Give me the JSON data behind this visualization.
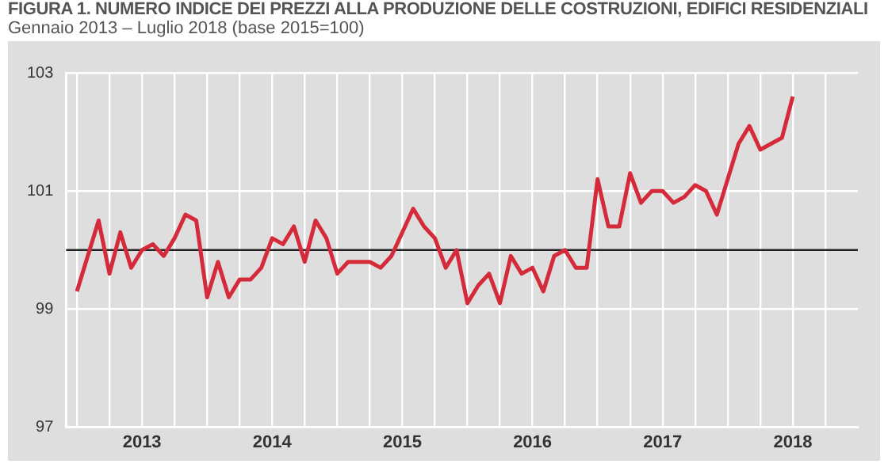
{
  "chart_data": {
    "type": "line",
    "title": "FIGURA 1. NUMERO INDICE DEI PREZZI ALLA PRODUZIONE DELLE COSTRUZIONI, EDIFICI RESIDENZIALI",
    "subtitle": "Gennaio 2013 – Luglio 2018 (base 2015=100)",
    "x": [
      "2013-01",
      "2013-02",
      "2013-03",
      "2013-04",
      "2013-05",
      "2013-06",
      "2013-07",
      "2013-08",
      "2013-09",
      "2013-10",
      "2013-11",
      "2013-12",
      "2014-01",
      "2014-02",
      "2014-03",
      "2014-04",
      "2014-05",
      "2014-06",
      "2014-07",
      "2014-08",
      "2014-09",
      "2014-10",
      "2014-11",
      "2014-12",
      "2015-01",
      "2015-02",
      "2015-03",
      "2015-04",
      "2015-05",
      "2015-06",
      "2015-07",
      "2015-08",
      "2015-09",
      "2015-10",
      "2015-11",
      "2015-12",
      "2016-01",
      "2016-02",
      "2016-03",
      "2016-04",
      "2016-05",
      "2016-06",
      "2016-07",
      "2016-08",
      "2016-09",
      "2016-10",
      "2016-11",
      "2016-12",
      "2017-01",
      "2017-02",
      "2017-03",
      "2017-04",
      "2017-05",
      "2017-06",
      "2017-07",
      "2017-08",
      "2017-09",
      "2017-10",
      "2017-11",
      "2017-12",
      "2018-01",
      "2018-02",
      "2018-03",
      "2018-04",
      "2018-05",
      "2018-06",
      "2018-07"
    ],
    "series": [
      {
        "color": "#d42a3a",
        "values": [
          99.3,
          99.9,
          100.5,
          99.6,
          100.3,
          99.7,
          100.0,
          100.1,
          99.9,
          100.2,
          100.6,
          100.5,
          99.2,
          99.8,
          99.2,
          99.5,
          99.5,
          99.7,
          100.2,
          100.1,
          100.4,
          99.8,
          100.5,
          100.2,
          99.6,
          99.8,
          99.8,
          99.8,
          99.7,
          99.9,
          100.3,
          100.7,
          100.4,
          100.2,
          99.7,
          100.0,
          99.1,
          99.4,
          99.6,
          99.1,
          99.9,
          99.6,
          99.7,
          99.3,
          99.9,
          100.0,
          99.7,
          99.7,
          101.2,
          100.4,
          100.4,
          101.3,
          100.8,
          101.0,
          101.0,
          100.8,
          100.9,
          101.1,
          101.0,
          100.6,
          101.2,
          101.8,
          102.1,
          101.7,
          101.8,
          101.9,
          102.6
        ]
      }
    ],
    "xlim": [
      "2012-12",
      "2019-01"
    ],
    "xticks": [
      {
        "value": "2013-01",
        "label": null
      },
      {
        "value": "2013-04",
        "label": null
      },
      {
        "value": "2013-07",
        "label": "2013"
      },
      {
        "value": "2013-10",
        "label": null
      },
      {
        "value": "2014-01",
        "label": null
      },
      {
        "value": "2014-04",
        "label": null
      },
      {
        "value": "2014-07",
        "label": "2014"
      },
      {
        "value": "2014-10",
        "label": null
      },
      {
        "value": "2015-01",
        "label": null
      },
      {
        "value": "2015-04",
        "label": null
      },
      {
        "value": "2015-07",
        "label": "2015"
      },
      {
        "value": "2015-10",
        "label": null
      },
      {
        "value": "2016-01",
        "label": null
      },
      {
        "value": "2016-04",
        "label": null
      },
      {
        "value": "2016-07",
        "label": "2016"
      },
      {
        "value": "2016-10",
        "label": null
      },
      {
        "value": "2017-01",
        "label": null
      },
      {
        "value": "2017-04",
        "label": null
      },
      {
        "value": "2017-07",
        "label": "2017"
      },
      {
        "value": "2017-10",
        "label": null
      },
      {
        "value": "2018-01",
        "label": null
      },
      {
        "value": "2018-04",
        "label": null
      },
      {
        "value": "2018-07",
        "label": "2018"
      },
      {
        "value": "2018-10",
        "label": null
      }
    ],
    "ylim": [
      97,
      103
    ],
    "yticks": [
      97,
      99,
      101,
      103
    ],
    "grid": true,
    "legend": false,
    "marker": "none",
    "line_style": "solid",
    "ref_lines": [
      {
        "axis": "y",
        "value": 100,
        "color": "#222222"
      }
    ]
  }
}
